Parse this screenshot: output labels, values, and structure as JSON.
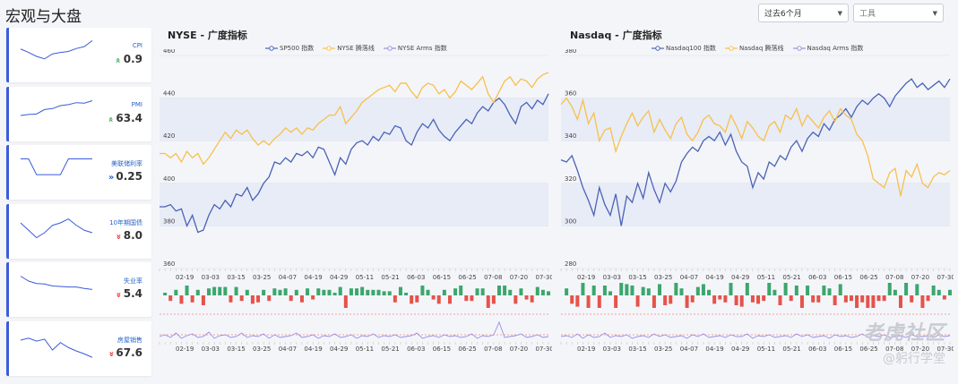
{
  "page": {
    "title": "宏观与大盘"
  },
  "controls": {
    "period_label": "过去6个月",
    "tools_placeholder": "工具"
  },
  "sidebar": {
    "cards": [
      {
        "label": "CPI",
        "arrow": "»",
        "value": "0.9",
        "color": "#2fa84f",
        "spark": [
          55,
          48,
          40,
          35,
          45,
          48,
          50,
          56,
          60,
          72
        ]
      },
      {
        "label": "PMI",
        "arrow": "»",
        "value": "63.4",
        "color": "#2fa84f",
        "spark": [
          40,
          42,
          43,
          52,
          54,
          60,
          62,
          66,
          65,
          70
        ]
      },
      {
        "label": "美联储利率",
        "arrow": "»",
        "value": "0.25",
        "color": "#2563c9",
        "spark": [
          70,
          70,
          38,
          38,
          38,
          38,
          70,
          70,
          70,
          70
        ]
      },
      {
        "label": "10年期国债",
        "arrow": "»",
        "value": "8.0",
        "color": "#e03131",
        "spark": [
          60,
          45,
          30,
          40,
          55,
          60,
          68,
          55,
          45,
          40
        ]
      },
      {
        "label": "失业率",
        "arrow": "»",
        "value": "5.4",
        "color": "#e03131",
        "spark": [
          70,
          60,
          55,
          54,
          50,
          49,
          48,
          48,
          45,
          43
        ]
      },
      {
        "label": "房屋销售",
        "arrow": "»",
        "value": "67.6",
        "color": "#e03131",
        "spark": [
          60,
          64,
          58,
          62,
          40,
          55,
          45,
          38,
          32,
          25
        ]
      }
    ]
  },
  "watermark": {
    "line1": "老虎社区",
    "line2": "@躬行学堂"
  },
  "chart_data": [
    {
      "type": "line",
      "title": "NYSE - 广度指标",
      "series": [
        {
          "name": "SP500 指数",
          "color": "#4a63b5",
          "values": [
            389,
            389,
            390,
            387,
            388,
            380,
            385,
            377,
            378,
            385,
            390,
            388,
            392,
            389,
            395,
            394,
            398,
            392,
            395,
            400,
            403,
            410,
            409,
            412,
            410,
            414,
            413,
            415,
            412,
            417,
            416,
            410,
            404,
            412,
            409,
            416,
            419,
            420,
            418,
            422,
            420,
            424,
            423,
            427,
            426,
            420,
            418,
            424,
            428,
            426,
            430,
            425,
            422,
            420,
            424,
            427,
            430,
            428,
            433,
            436,
            434,
            438,
            440,
            437,
            432,
            428,
            436,
            438,
            435,
            439,
            437,
            442
          ]
        },
        {
          "name": "NYSE 腾落线",
          "color": "#f7c04a",
          "values": [
            414,
            414,
            412,
            414,
            410,
            415,
            412,
            414,
            409,
            412,
            416,
            420,
            424,
            421,
            425,
            423,
            425,
            421,
            418,
            420,
            418,
            421,
            423,
            426,
            424,
            426,
            423,
            426,
            425,
            428,
            430,
            432,
            432,
            436,
            428,
            431,
            434,
            438,
            440,
            442,
            444,
            445,
            446,
            443,
            447,
            447,
            443,
            440,
            445,
            447,
            446,
            442,
            444,
            440,
            443,
            448,
            446,
            444,
            447,
            450,
            442,
            438,
            443,
            448,
            450,
            446,
            449,
            448,
            445,
            449,
            451,
            452
          ]
        },
        {
          "name": "NYSE Arms 指数",
          "color": "#9b8ee0",
          "values": [
            1,
            1.2,
            0.9,
            1.4,
            0.8,
            1.1,
            1.3,
            0.9,
            1.0,
            1.5,
            0.8,
            1.1,
            1.2,
            0.9,
            1.0,
            1.4,
            0.9,
            1.1,
            1.0,
            1.3,
            0.8,
            1.2,
            0.9,
            1.0,
            1.1,
            1.4,
            0.9,
            1.0,
            1.2,
            0.8,
            1.1,
            1.0,
            1.3,
            0.9,
            1.0,
            1.2,
            0.8,
            1.1,
            1.0,
            1.3,
            0.9,
            1.1,
            1.0,
            1.2,
            0.9,
            1.0,
            1.1,
            1.4,
            0.8,
            1.0,
            1.1,
            0.9,
            1.2,
            1.0,
            1.1,
            0.9,
            1.0,
            1.3,
            0.8,
            1.1,
            1.0,
            1.2,
            2.6,
            0.9,
            1.0,
            1.1,
            1.3,
            0.9,
            1.0,
            1.2,
            0.9,
            1.0
          ]
        }
      ],
      "ylim": [
        360,
        460
      ],
      "yticks": [
        360,
        380,
        400,
        420,
        440,
        460
      ],
      "xticks": [
        "02-19",
        "03-03",
        "03-15",
        "03-25",
        "04-07",
        "04-19",
        "04-29",
        "05-11",
        "05-21",
        "06-03",
        "06-15",
        "06-25",
        "07-08",
        "07-20",
        "07-30"
      ]
    },
    {
      "type": "line",
      "title": "Nasdaq - 广度指标",
      "series": [
        {
          "name": "Nasdaq100 指数",
          "color": "#4a63b5",
          "values": [
            331,
            330,
            333,
            326,
            318,
            312,
            305,
            318,
            310,
            305,
            315,
            300,
            314,
            311,
            320,
            313,
            325,
            317,
            311,
            320,
            316,
            321,
            330,
            334,
            337,
            335,
            340,
            342,
            340,
            344,
            338,
            343,
            335,
            330,
            328,
            318,
            325,
            322,
            330,
            328,
            333,
            331,
            337,
            340,
            335,
            341,
            344,
            342,
            348,
            345,
            350,
            352,
            355,
            351,
            356,
            359,
            357,
            360,
            362,
            360,
            356,
            361,
            364,
            367,
            369,
            365,
            367,
            364,
            366,
            368,
            365,
            369
          ]
        },
        {
          "name": "Nasdaq 腾落线",
          "color": "#f7c04a",
          "values": [
            357,
            360,
            356,
            350,
            359,
            348,
            353,
            340,
            345,
            346,
            335,
            342,
            348,
            353,
            347,
            351,
            354,
            344,
            350,
            345,
            341,
            348,
            351,
            343,
            340,
            344,
            350,
            352,
            348,
            347,
            344,
            352,
            347,
            341,
            349,
            346,
            342,
            340,
            347,
            349,
            344,
            352,
            350,
            355,
            347,
            352,
            349,
            346,
            351,
            354,
            349,
            355,
            352,
            350,
            343,
            340,
            333,
            322,
            320,
            318,
            325,
            327,
            314,
            326,
            323,
            329,
            320,
            318,
            323,
            325,
            324,
            326
          ]
        },
        {
          "name": "Nasdaq Arms 指数",
          "color": "#9b8ee0",
          "values": [
            1,
            1.1,
            0.9,
            1.3,
            0.8,
            1.2,
            0.9,
            1.0,
            1.4,
            0.9,
            1.1,
            1.0,
            1.2,
            0.8,
            1.0,
            1.1,
            0.9,
            1.3,
            1.0,
            1.2,
            0.9,
            1.0,
            1.1,
            0.8,
            1.2,
            1.0,
            1.3,
            0.9,
            1.0,
            1.1,
            0.9,
            1.2,
            1.0,
            1.0,
            1.3,
            0.8,
            1.1,
            1.0,
            1.2,
            0.9,
            1.0,
            1.1,
            0.9,
            1.3,
            1.0,
            1.2,
            0.9,
            1.0,
            1.1,
            0.8,
            1.2,
            1.0,
            1.1,
            0.9,
            1.0,
            1.3,
            0.9,
            1.1,
            1.0,
            1.2,
            0.9,
            1.0,
            1.1,
            0.9,
            1.2,
            1.0,
            1.0,
            1.1,
            0.9,
            1.2,
            1.0,
            1.1
          ]
        }
      ],
      "ylim": [
        280,
        380
      ],
      "yticks": [
        280,
        300,
        320,
        340,
        360,
        380
      ],
      "xticks": [
        "02-19",
        "03-03",
        "03-15",
        "03-25",
        "04-07",
        "04-19",
        "04-29",
        "05-11",
        "05-21",
        "06-03",
        "06-15",
        "06-25",
        "07-08",
        "07-20",
        "07-30"
      ]
    }
  ]
}
